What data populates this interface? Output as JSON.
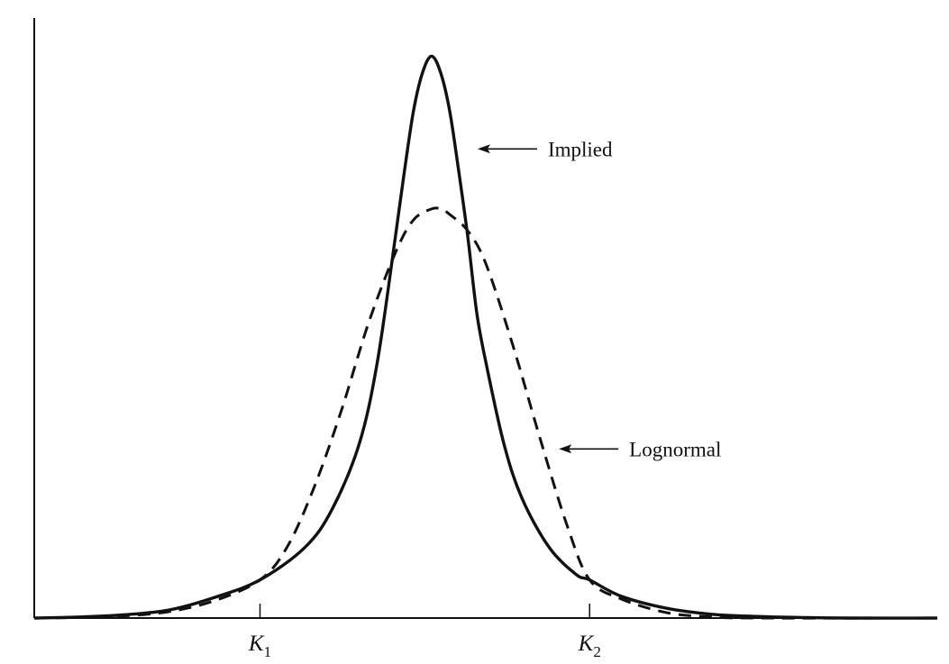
{
  "chart_data": {
    "type": "line",
    "title": "",
    "xlabel": "",
    "ylabel": "",
    "grid": false,
    "xlim": [
      0,
      10
    ],
    "ylim": [
      0,
      1.1
    ],
    "x_ticks": [
      {
        "value": 2.5,
        "main": "K",
        "sub": "1"
      },
      {
        "value": 6.15,
        "main": "K",
        "sub": "2"
      }
    ],
    "series": [
      {
        "name": "Implied",
        "style": "solid",
        "x": [
          0,
          0.5,
          1,
          1.5,
          2,
          2.5,
          3,
          3.3,
          3.6,
          3.8,
          4.0,
          4.1,
          4.2,
          4.3,
          4.4,
          4.5,
          4.6,
          4.7,
          4.8,
          4.9,
          5.0,
          5.2,
          5.4,
          5.7,
          6.0,
          6.15,
          6.5,
          7.0,
          7.5,
          8.0,
          8.5,
          9.0,
          10
        ],
        "y": [
          0,
          0.002,
          0.006,
          0.015,
          0.038,
          0.07,
          0.13,
          0.2,
          0.32,
          0.47,
          0.7,
          0.82,
          0.93,
          1.0,
          1.03,
          1.0,
          0.93,
          0.82,
          0.7,
          0.56,
          0.47,
          0.32,
          0.22,
          0.13,
          0.08,
          0.07,
          0.04,
          0.018,
          0.007,
          0.003,
          0.001,
          0.0,
          0
        ]
      },
      {
        "name": "Lognormal",
        "style": "dashed",
        "x": [
          0,
          0.5,
          1,
          1.5,
          2,
          2.5,
          2.8,
          3.1,
          3.4,
          3.7,
          4.0,
          4.2,
          4.4,
          4.5,
          4.6,
          4.8,
          5.0,
          5.3,
          5.6,
          5.9,
          6.15,
          6.5,
          7.0,
          7.5,
          8.0,
          10
        ],
        "y": [
          0,
          0.001,
          0.004,
          0.012,
          0.032,
          0.07,
          0.13,
          0.24,
          0.38,
          0.54,
          0.67,
          0.73,
          0.75,
          0.75,
          0.74,
          0.71,
          0.65,
          0.5,
          0.33,
          0.17,
          0.07,
          0.035,
          0.01,
          0.002,
          0.0,
          0
        ]
      }
    ],
    "annotations": [
      {
        "text": "Implied",
        "series": "Implied",
        "point_x": 4.85,
        "point_y": 0.86
      },
      {
        "text": "Lognormal",
        "series": "Lognormal",
        "point_x": 5.75,
        "point_y": 0.31
      }
    ]
  }
}
